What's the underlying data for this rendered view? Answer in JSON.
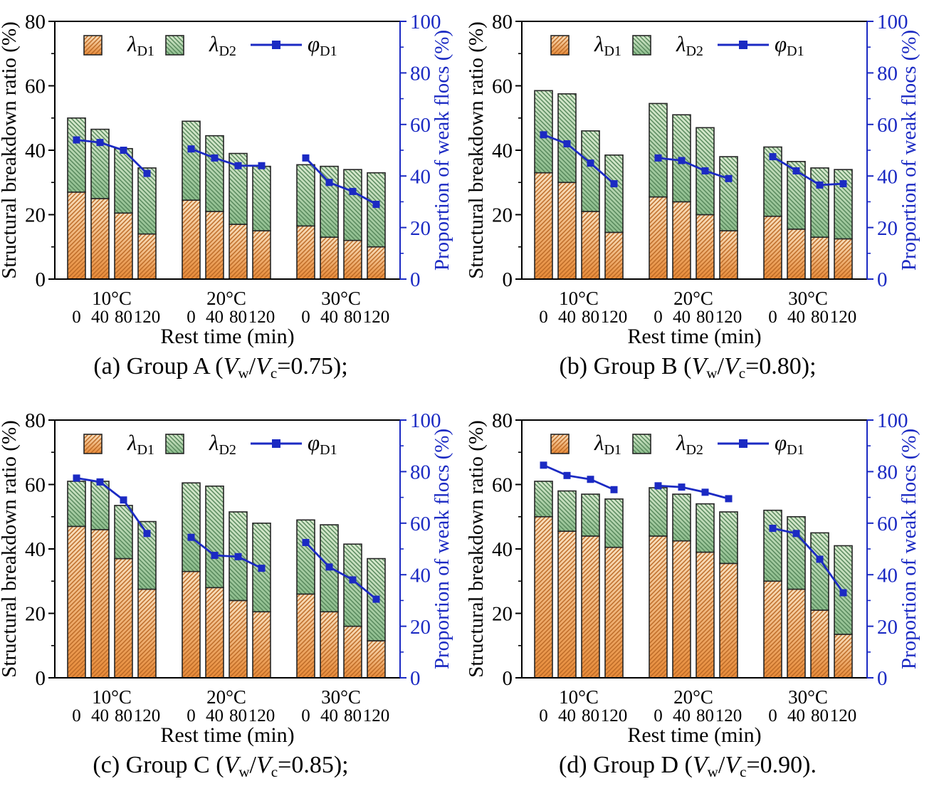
{
  "figure": {
    "background": "#ffffff",
    "panel_captions": [
      "(a) Group A (Vw/Vc=0.75);",
      "(b) Group B (Vw/Vc=0.80);",
      "(c) Group C (Vw/Vc=0.85);",
      "(d) Group D (Vw/Vc=0.90)."
    ]
  },
  "chart_common": {
    "left_axis": {
      "label": "Structural breakdown ratio (%)",
      "min": 0,
      "max": 80,
      "major_ticks": [
        0,
        20,
        40,
        60,
        80
      ],
      "minor_step": 10,
      "color": "#000000"
    },
    "right_axis": {
      "label": "Proportion of weak flocs (%)",
      "min": 0,
      "max": 100,
      "major_ticks": [
        0,
        20,
        40,
        60,
        80,
        100
      ],
      "minor_step": 10,
      "color": "#1b2ac3"
    },
    "x_axis": {
      "label": "Rest time (min)",
      "temperature_groups": [
        "10°C",
        "20°C",
        "30°C"
      ],
      "rest_times": [
        "0",
        "40",
        "80",
        "120"
      ]
    },
    "legend": [
      {
        "id": "lambda_D1",
        "symbol": "λ",
        "sub": "D1",
        "swatch": "orange-hatch-box"
      },
      {
        "id": "lambda_D2",
        "symbol": "λ",
        "sub": "D2",
        "swatch": "green-hatch-box"
      },
      {
        "id": "phi_D1",
        "symbol": "φ",
        "sub": "D1",
        "swatch": "blue-line-square-marker"
      }
    ],
    "legend_position": "top-inside",
    "grid": "off",
    "stacking_note": "lambda_D2 segment is stacked on top of lambda_D1; phi_D1 plotted on right axis as one line per temperature group",
    "colors": {
      "orange_top": "#f8dfbd",
      "orange_bottom": "#e78a38",
      "orange_hatch": "#bc6a26",
      "green_top": "#d7e9cd",
      "green_bottom": "#8dbd8d",
      "green_hatch": "#55865a",
      "bar_border": "#262626",
      "line_blue": "#1b2ac3",
      "axis_black": "#000000",
      "background": "#ffffff"
    }
  },
  "chart_data": [
    {
      "panel": "a",
      "type": "bar+line",
      "caption_text": "(a) Group A (Vw/Vc=0.75);",
      "caption_segments": [
        {
          "t": "(a) Group A (",
          "s": "plain"
        },
        {
          "t": "V",
          "s": "italic"
        },
        {
          "t": "w",
          "s": "sub"
        },
        {
          "t": "/",
          "s": "plain"
        },
        {
          "t": "V",
          "s": "italic"
        },
        {
          "t": "c",
          "s": "sub"
        },
        {
          "t": "=0.75);",
          "s": "plain"
        }
      ],
      "series": {
        "lambda_D1": [
          [
            27,
            25,
            20.5,
            14
          ],
          [
            24.5,
            21,
            17,
            15
          ],
          [
            16.5,
            13,
            12,
            10
          ]
        ],
        "lambda_D2": [
          [
            23,
            21.5,
            20,
            20.5
          ],
          [
            24.5,
            23.5,
            22,
            20
          ],
          [
            19,
            22,
            22,
            23
          ]
        ],
        "phi_D1": [
          [
            54,
            53,
            50,
            41
          ],
          [
            50.5,
            47,
            44,
            44
          ],
          [
            47,
            37.5,
            34,
            29
          ]
        ]
      }
    },
    {
      "panel": "b",
      "type": "bar+line",
      "caption_text": "(b) Group B (Vw/Vc=0.80);",
      "caption_segments": [
        {
          "t": "(b) Group B (",
          "s": "plain"
        },
        {
          "t": "V",
          "s": "italic"
        },
        {
          "t": "w",
          "s": "sub"
        },
        {
          "t": "/",
          "s": "plain"
        },
        {
          "t": "V",
          "s": "italic"
        },
        {
          "t": "c",
          "s": "sub"
        },
        {
          "t": "=0.80);",
          "s": "plain"
        }
      ],
      "series": {
        "lambda_D1": [
          [
            33,
            30,
            21,
            14.5
          ],
          [
            25.5,
            24,
            20,
            15
          ],
          [
            19.5,
            15.5,
            13,
            12.5
          ]
        ],
        "lambda_D2": [
          [
            25.5,
            27.5,
            25,
            24
          ],
          [
            29,
            27,
            27,
            23
          ],
          [
            21.5,
            21,
            21.5,
            21.5
          ]
        ],
        "phi_D1": [
          [
            56,
            52.5,
            45,
            37
          ],
          [
            47,
            46,
            42,
            39
          ],
          [
            47.5,
            42,
            36.5,
            37
          ]
        ]
      }
    },
    {
      "panel": "c",
      "type": "bar+line",
      "caption_text": "(c) Group C (Vw/Vc=0.85);",
      "caption_segments": [
        {
          "t": "(c) Group C (",
          "s": "plain"
        },
        {
          "t": "V",
          "s": "italic"
        },
        {
          "t": "w",
          "s": "sub"
        },
        {
          "t": "/",
          "s": "plain"
        },
        {
          "t": "V",
          "s": "italic"
        },
        {
          "t": "c",
          "s": "sub"
        },
        {
          "t": "=0.85);",
          "s": "plain"
        }
      ],
      "series": {
        "lambda_D1": [
          [
            47,
            46,
            37,
            27.5
          ],
          [
            33,
            28,
            24,
            20.5
          ],
          [
            26,
            20.5,
            16,
            11.5
          ]
        ],
        "lambda_D2": [
          [
            14,
            15,
            16.5,
            21
          ],
          [
            27.5,
            31.5,
            27.5,
            27.5
          ],
          [
            23,
            27,
            25.5,
            25.5
          ]
        ],
        "phi_D1": [
          [
            77.5,
            76,
            69,
            56
          ],
          [
            54.5,
            47.5,
            47,
            42.5
          ],
          [
            52.5,
            43,
            38,
            30.5
          ]
        ]
      }
    },
    {
      "panel": "d",
      "type": "bar+line",
      "caption_text": "(d) Group D (Vw/Vc=0.90).",
      "caption_segments": [
        {
          "t": "(d) Group D (",
          "s": "plain"
        },
        {
          "t": "V",
          "s": "italic"
        },
        {
          "t": "w",
          "s": "sub"
        },
        {
          "t": "/",
          "s": "plain"
        },
        {
          "t": "V",
          "s": "italic"
        },
        {
          "t": "c",
          "s": "sub"
        },
        {
          "t": "=0.90).",
          "s": "plain"
        }
      ],
      "series": {
        "lambda_D1": [
          [
            50,
            45.5,
            44,
            40.5
          ],
          [
            44,
            42.5,
            39,
            35.5
          ],
          [
            30,
            27.5,
            21,
            13.5
          ]
        ],
        "lambda_D2": [
          [
            11,
            12.5,
            13,
            15
          ],
          [
            15,
            14.5,
            15,
            16
          ],
          [
            22,
            22.5,
            24,
            27.5
          ]
        ],
        "phi_D1": [
          [
            82.5,
            78.5,
            77,
            73
          ],
          [
            74.5,
            74,
            72,
            69.5
          ],
          [
            58,
            56,
            46,
            33
          ]
        ]
      }
    }
  ]
}
